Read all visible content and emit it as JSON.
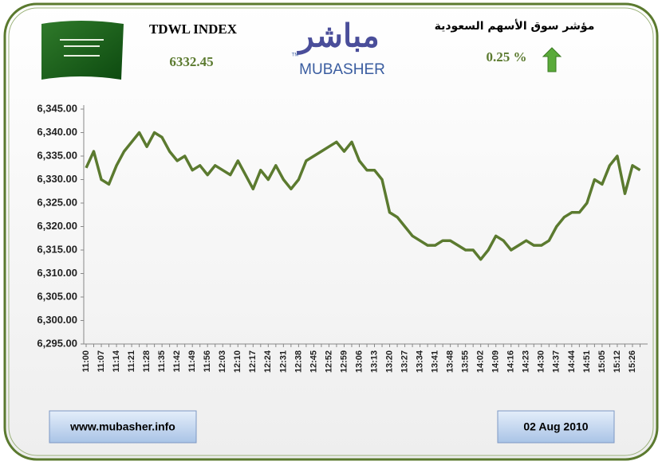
{
  "header": {
    "index_name": "TDWL INDEX",
    "index_value": "6332.45",
    "logo_arabic": "مباشر",
    "logo_latin": "MUBASHER",
    "logo_tm": "TM",
    "title_arabic": "مؤشر سوق الأسهم السعودية",
    "change": "0.25 %"
  },
  "chart_data": {
    "type": "line",
    "color": "#5b7a2f",
    "categories": [
      "11:00",
      null,
      "11:07",
      null,
      "11:14",
      null,
      "11:21",
      null,
      "11:28",
      null,
      "11:35",
      null,
      "11:42",
      null,
      "11:49",
      null,
      "11:56",
      null,
      "12:03",
      null,
      "12:10",
      null,
      "12:17",
      null,
      "12:24",
      null,
      "12:31",
      null,
      "12:38",
      null,
      "12:45",
      null,
      "12:52",
      null,
      "12:59",
      null,
      "13:06",
      null,
      "13:13",
      null,
      "13:20",
      null,
      "13:27",
      null,
      "13:34",
      null,
      "13:41",
      null,
      "13:48",
      null,
      "13:55",
      null,
      "14:02",
      null,
      "14:09",
      null,
      "14:16",
      null,
      "14:23",
      null,
      "14:30",
      null,
      "14:37",
      null,
      "14:44",
      null,
      "14:51",
      null,
      "15:05",
      null,
      "15:12",
      null,
      "15:26",
      null
    ],
    "values": [
      6332.5,
      6336,
      6330,
      6329,
      6333,
      6336,
      6338,
      6340,
      6337,
      6340,
      6339,
      6336,
      6334,
      6335,
      6332,
      6333,
      6331,
      6333,
      6332,
      6331,
      6334,
      6331,
      6328,
      6332,
      6330,
      6333,
      6330,
      6328,
      6330,
      6334,
      6335,
      6336,
      6337,
      6338,
      6336,
      6338,
      6334,
      6332,
      6332,
      6330,
      6323,
      6322,
      6320,
      6318,
      6317,
      6316,
      6316,
      6317,
      6317,
      6316,
      6315,
      6315,
      6313,
      6315,
      6318,
      6317,
      6315,
      6316,
      6317,
      6316,
      6316,
      6317,
      6320,
      6322,
      6323,
      6323,
      6325,
      6330,
      6329,
      6333,
      6335,
      6327,
      6333,
      6332
    ],
    "ylim": [
      6295,
      6345
    ],
    "yticks": [
      {
        "value": 6295,
        "label": "6,295.00"
      },
      {
        "value": 6300,
        "label": "6,300.00"
      },
      {
        "value": 6305,
        "label": "6,305.00"
      },
      {
        "value": 6310,
        "label": "6,310.00"
      },
      {
        "value": 6315,
        "label": "6,315.00"
      },
      {
        "value": 6320,
        "label": "6,320.00"
      },
      {
        "value": 6325,
        "label": "6,325.00"
      },
      {
        "value": 6330,
        "label": "6,330.00"
      },
      {
        "value": 6335,
        "label": "6,335.00"
      },
      {
        "value": 6340,
        "label": "6,340.00"
      },
      {
        "value": 6345,
        "label": "6,345.00"
      }
    ]
  },
  "footer": {
    "website": "www.mubasher.info",
    "date": "02 Aug 2010"
  }
}
